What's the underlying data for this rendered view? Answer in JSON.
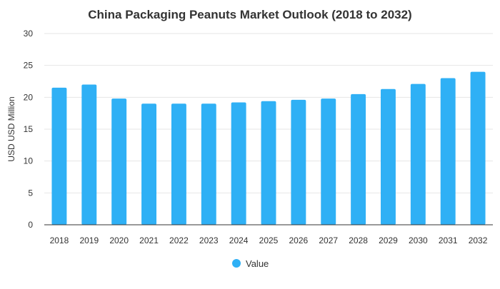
{
  "chart_data": {
    "type": "bar",
    "title": "China Packaging Peanuts Market Outlook (2018 to 2032)",
    "xlabel": "",
    "ylabel": "USD USD Million",
    "categories": [
      "2018",
      "2019",
      "2020",
      "2021",
      "2022",
      "2023",
      "2024",
      "2025",
      "2026",
      "2027",
      "2028",
      "2029",
      "2030",
      "2031",
      "2032"
    ],
    "series": [
      {
        "name": "Value",
        "values": [
          21.5,
          22.0,
          19.8,
          19.0,
          19.0,
          19.0,
          19.2,
          19.4,
          19.6,
          19.8,
          20.5,
          21.3,
          22.1,
          23.0,
          24.0
        ]
      }
    ],
    "ylim": [
      0,
      30
    ],
    "yticks": [
      0,
      5,
      10,
      15,
      20,
      25,
      30
    ],
    "grid": true,
    "legend_position": "bottom",
    "colors": {
      "bar": "#2fb0f5",
      "grid": "#e6e6e6",
      "axis": "#333333",
      "text": "#333333",
      "title": "#333333"
    }
  }
}
